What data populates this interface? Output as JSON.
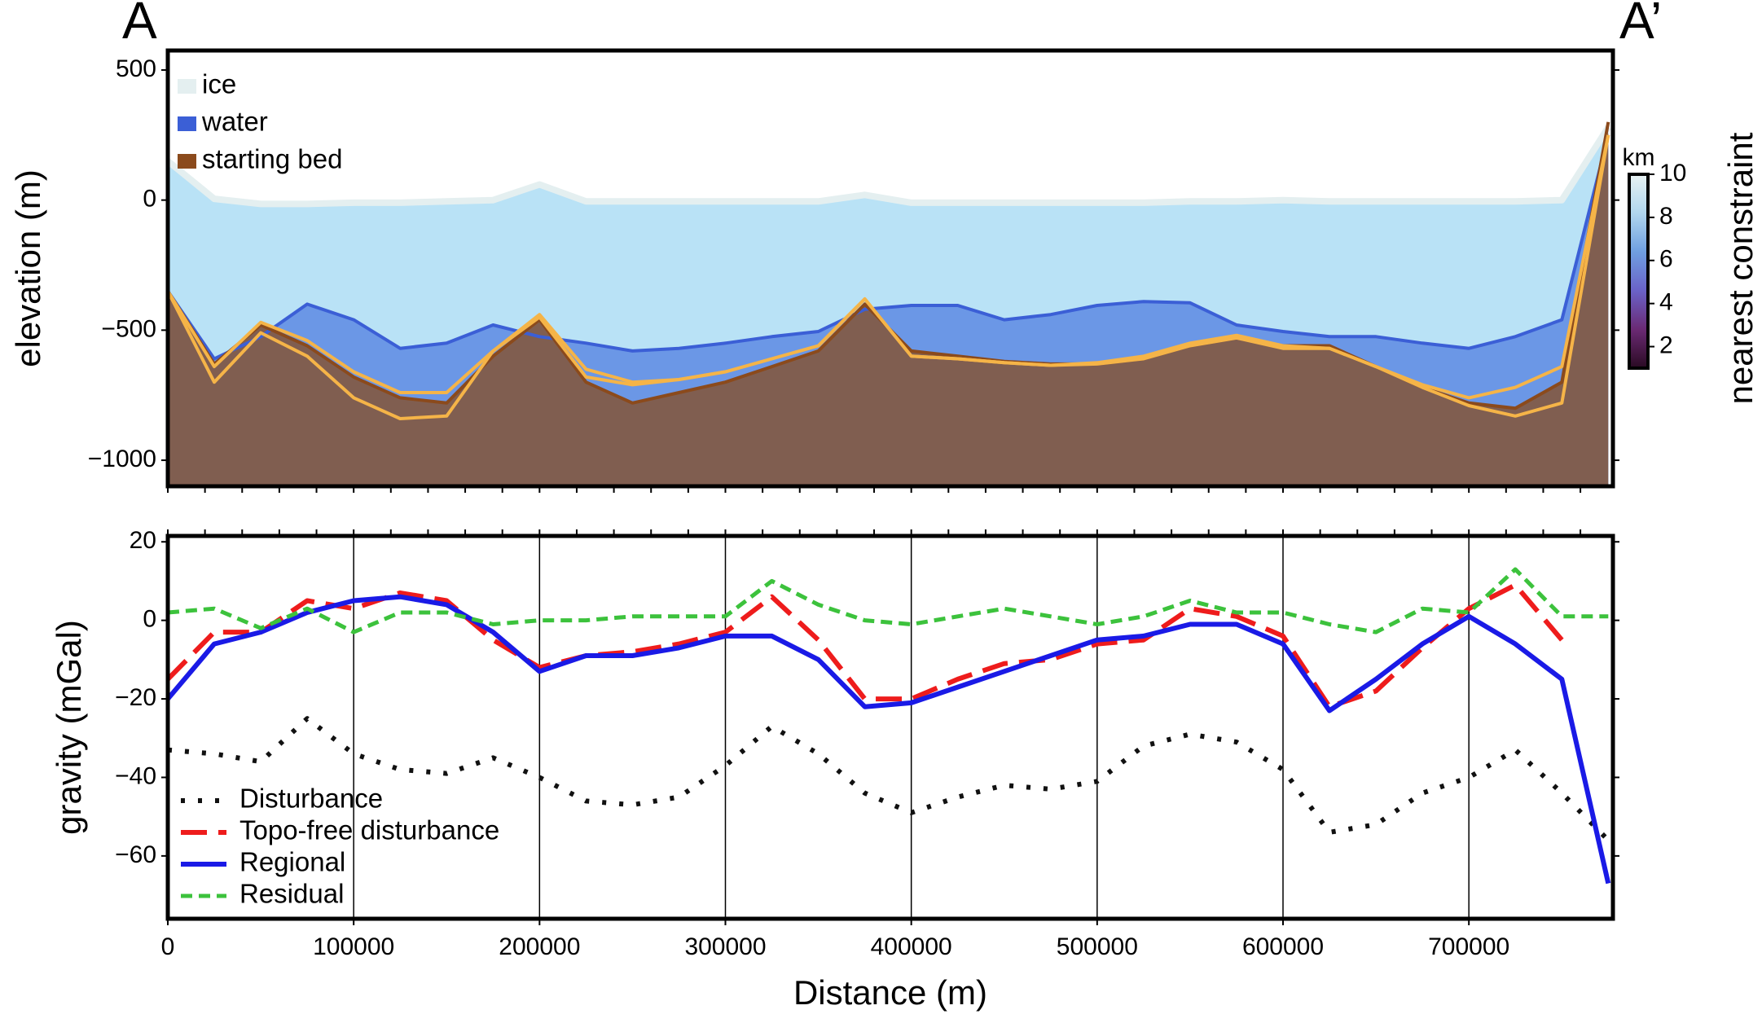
{
  "chart_data": [
    {
      "type": "area",
      "annotations": [
        "A",
        "A’"
      ],
      "ylabel": "elevation (m)",
      "x": [
        0,
        25000,
        50000,
        75000,
        100000,
        125000,
        150000,
        175000,
        200000,
        225000,
        250000,
        275000,
        300000,
        325000,
        350000,
        375000,
        400000,
        425000,
        450000,
        475000,
        500000,
        525000,
        550000,
        575000,
        600000,
        625000,
        650000,
        675000,
        700000,
        725000,
        750000,
        775000
      ],
      "xlim": [
        0,
        777500
      ],
      "ylim": [
        -1100,
        575
      ],
      "yticks": [
        500,
        0,
        {
          "value": -500,
          "label": "−500"
        },
        {
          "value": -1000,
          "label": "−1000"
        }
      ],
      "series": [
        {
          "name": "ice",
          "color": "#b9e2f6",
          "edge_color": "#e4eff0",
          "values": [
            150,
            5,
            -15,
            -15,
            -10,
            -10,
            -5,
            0,
            60,
            -5,
            -5,
            -5,
            -5,
            -5,
            -5,
            20,
            -10,
            -10,
            -10,
            -10,
            -10,
            -10,
            -5,
            -5,
            0,
            -5,
            -5,
            -5,
            -5,
            -5,
            0,
            280
          ]
        },
        {
          "name": "water",
          "color": "#6b97e6",
          "edge_color": "#3b5fd6",
          "values": [
            -350,
            -610,
            -525,
            -400,
            -460,
            -570,
            -550,
            -480,
            -525,
            -550,
            -580,
            -570,
            -550,
            -525,
            -505,
            -420,
            -405,
            -405,
            -460,
            -440,
            -405,
            -390,
            -395,
            -480,
            -505,
            -525,
            -525,
            -550,
            -570,
            -525,
            -460,
            250
          ]
        },
        {
          "name": "starting bed",
          "color": "#805e50",
          "edge_color": "#8b4a1c",
          "values": [
            -350,
            -630,
            -480,
            -560,
            -680,
            -760,
            -780,
            -600,
            -460,
            -700,
            -780,
            -740,
            -700,
            -640,
            -580,
            -400,
            -580,
            -600,
            -620,
            -630,
            -630,
            -610,
            -560,
            -530,
            -560,
            -560,
            -640,
            -720,
            -780,
            -800,
            -700,
            300
          ]
        },
        {
          "color": "#f5b448",
          "values": [
            -350,
            -700,
            -510,
            -600,
            -760,
            -840,
            -830,
            -580,
            -450,
            -680,
            -710,
            -690,
            -660,
            -610,
            -560,
            -380,
            -600,
            -610,
            -625,
            -635,
            -630,
            -610,
            -560,
            -530,
            -570,
            -570,
            -640,
            -720,
            -790,
            -830,
            -780,
            250
          ]
        },
        {
          "color": "#f5b448",
          "values": [
            -350,
            -640,
            -470,
            -540,
            -660,
            -740,
            -740,
            -580,
            -440,
            -650,
            -700,
            -690,
            -660,
            -610,
            -560,
            -380,
            -600,
            -610,
            -625,
            -635,
            -625,
            -600,
            -550,
            -520,
            -560,
            -570,
            -640,
            -710,
            -760,
            -720,
            -640,
            250
          ]
        }
      ],
      "colorbar": {
        "unit": "km",
        "label": "nearest constraint",
        "clim": [
          1,
          10
        ],
        "cticks": [
          2,
          4,
          6,
          8,
          10
        ],
        "colormap": [
          "#2a0a22",
          "#6a2a74",
          "#6a62c8",
          "#6f9fe0",
          "#b0d6ee",
          "#e8f2f2"
        ]
      }
    },
    {
      "type": "line",
      "xlabel": "Distance (m)",
      "ylabel": "gravity (mGal)",
      "x": [
        0,
        25000,
        50000,
        75000,
        100000,
        125000,
        150000,
        175000,
        200000,
        225000,
        250000,
        275000,
        300000,
        325000,
        350000,
        375000,
        400000,
        425000,
        450000,
        475000,
        500000,
        525000,
        550000,
        575000,
        600000,
        625000,
        650000,
        675000,
        700000,
        725000,
        750000,
        775000
      ],
      "xlim": [
        0,
        777500
      ],
      "ylim": [
        -76,
        21.5
      ],
      "xticks": [
        0,
        100000,
        200000,
        300000,
        400000,
        500000,
        600000,
        700000
      ],
      "yticks": [
        20,
        0,
        {
          "value": -20,
          "label": "−20"
        },
        {
          "value": -40,
          "label": "−40"
        },
        {
          "value": -60,
          "label": "−60"
        }
      ],
      "grid": "x",
      "legend": "lower left",
      "series": [
        {
          "name": "Disturbance",
          "color": "#111111",
          "dash": "dotted",
          "values": [
            -33,
            -34,
            -36,
            -25,
            -34,
            -38,
            -39,
            -35,
            -40,
            -46,
            -47,
            -45,
            -37,
            -27,
            -34,
            -44,
            -49,
            -45,
            -42,
            -43,
            -41,
            -32,
            -29,
            -31,
            -38,
            -54,
            -52,
            -44,
            -40,
            -33,
            -44,
            -56
          ]
        },
        {
          "name": "Topo-free disturbance",
          "color": "#ee1c1c",
          "dash": "dashed",
          "values": [
            -15,
            -3,
            -3,
            5,
            3,
            7,
            5,
            -5,
            -12,
            -9,
            -8,
            -6,
            -3,
            6,
            -5,
            -20,
            -20,
            -15,
            -11,
            -10,
            -6,
            -5,
            3,
            1,
            -4,
            -22,
            -18,
            -7,
            3,
            9,
            -5,
            null
          ]
        },
        {
          "name": "Regional",
          "color": "#1a1ae6",
          "dash": "solid",
          "values": [
            -20,
            -6,
            -3,
            2,
            5,
            6,
            4,
            -3,
            -13,
            -9,
            -9,
            -7,
            -4,
            -4,
            -10,
            -22,
            -21,
            -17,
            -13,
            -9,
            -5,
            -4,
            -1,
            -1,
            -6,
            -23,
            -15,
            -6,
            1,
            -6,
            -15,
            -67
          ]
        },
        {
          "name": "Residual",
          "color": "#3cc23c",
          "dash": "short",
          "values": [
            2,
            3,
            -2,
            3,
            -3,
            2,
            2,
            -1,
            0,
            0,
            1,
            1,
            1,
            10,
            4,
            0,
            -1,
            1,
            3,
            1,
            -1,
            1,
            5,
            2,
            2,
            -1,
            -3,
            3,
            2,
            13,
            1,
            1
          ]
        }
      ]
    }
  ]
}
